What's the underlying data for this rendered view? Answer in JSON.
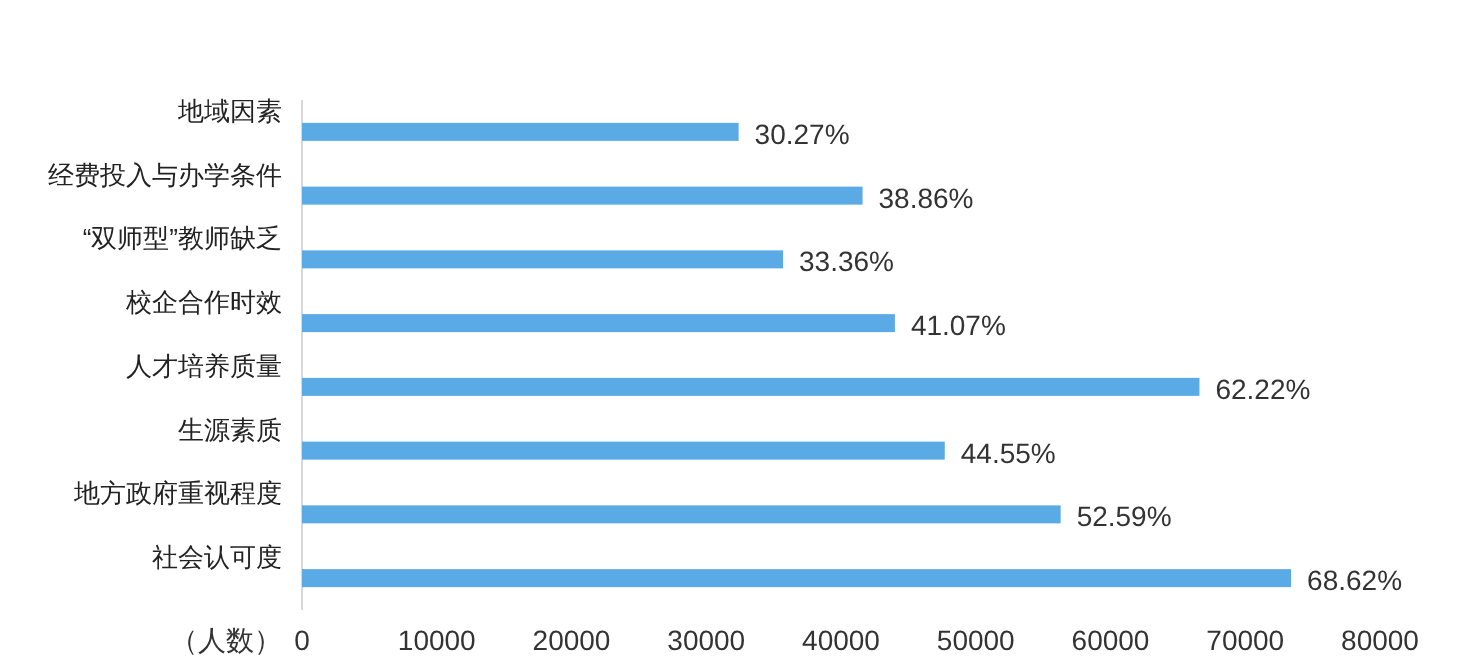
{
  "chart_data": {
    "type": "bar",
    "orientation": "horizontal",
    "xlabel": "（人数）",
    "categories": [
      "地域因素",
      "经费投入与办学条件",
      "“双师型”教师缺乏",
      "校企合作时效",
      "人才培养质量",
      "生源素质",
      "地方政府重视程度",
      "社会认可度"
    ],
    "values": [
      32400,
      41600,
      35700,
      44000,
      66600,
      47700,
      56300,
      73400
    ],
    "annotations": [
      {
        "text": "30.27%",
        "x": 32400,
        "y": "地域因素"
      },
      {
        "text": "38.86%",
        "x": 41600,
        "y": "经费投入与办学条件"
      },
      {
        "text": "33.36%",
        "x": 35700,
        "y": "“双师型”教师缺乏"
      },
      {
        "text": "41.07%",
        "x": 44000,
        "y": "校企合作时效"
      },
      {
        "text": "62.22%",
        "x": 66600,
        "y": "人才培养质量"
      },
      {
        "text": "44.55%",
        "x": 47700,
        "y": "生源素质"
      },
      {
        "text": "52.59%",
        "x": 56300,
        "y": "地方政府重视程度"
      },
      {
        "text": "68.62%",
        "x": 73400,
        "y": "社会认可度"
      }
    ],
    "color": "#5aaae6",
    "xlim": [
      0,
      80000
    ],
    "xticks": [
      0,
      10000,
      20000,
      30000,
      40000,
      50000,
      60000,
      70000,
      80000
    ],
    "grid": false
  }
}
